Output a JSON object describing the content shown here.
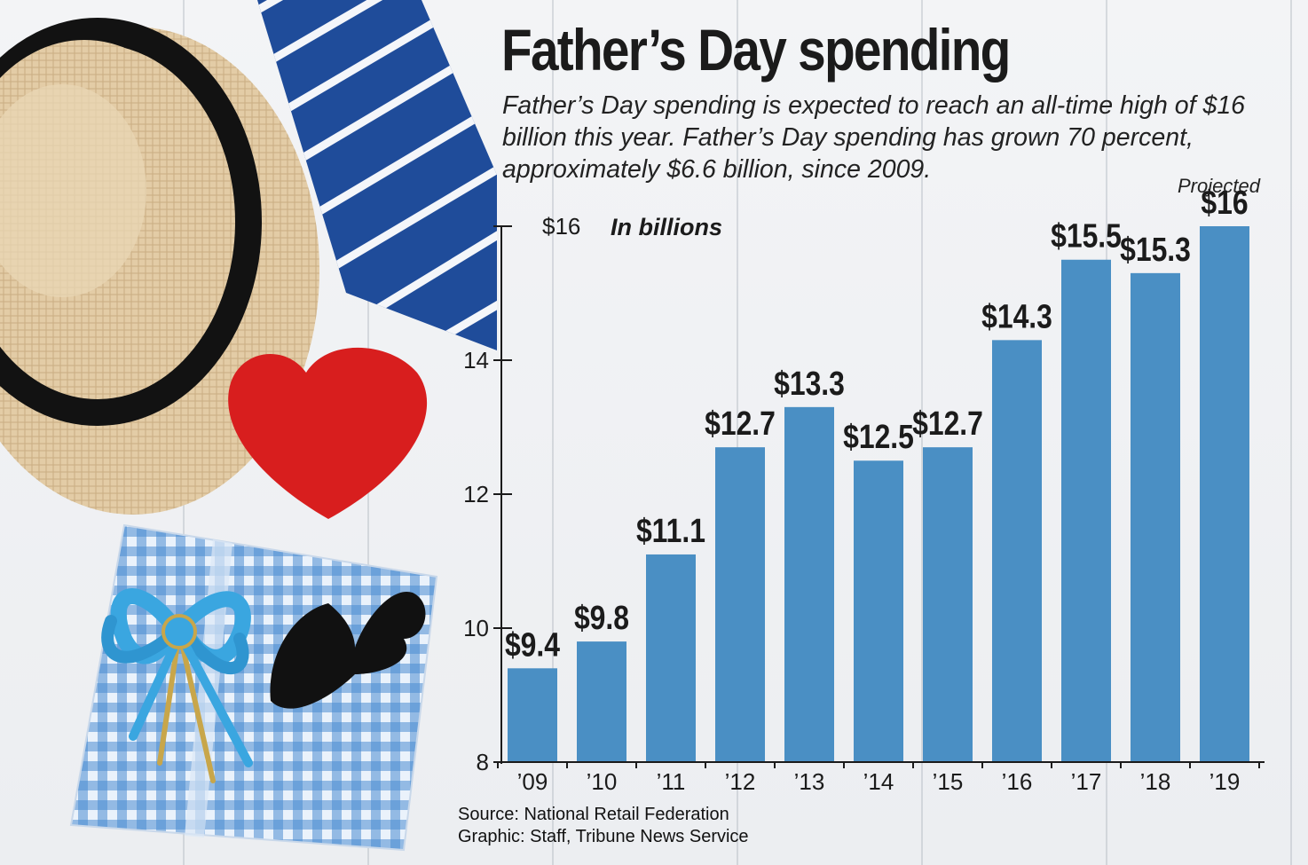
{
  "header": {
    "title": "Father’s Day spending",
    "subtitle": "Father’s Day spending is expected to reach an all-time high of $16 billion this year. Father’s Day spending has grown 70 percent, approximately $6.6 billion, since 2009."
  },
  "annotations": {
    "projected": "Projected",
    "unit": "In billions"
  },
  "footer": {
    "source": "Source: National Retail Federation",
    "credit": "Graphic: Staff, Tribune News Service"
  },
  "colors": {
    "bar": "#4a8fc4",
    "text": "#1b1b1b",
    "hat_straw": "#e2cba4",
    "hat_band": "#121212",
    "tie": "#1f4c9a",
    "heart": "#d81e1e",
    "gift": "#5c9ad6",
    "bow": "#3aa6e0"
  },
  "icons": [
    "straw-hat-icon",
    "tie-icon",
    "heart-icon",
    "gift-box-icon",
    "bow-icon",
    "mustache-icon"
  ],
  "chart_data": {
    "type": "bar",
    "categories": [
      "’09",
      "’10",
      "’11",
      "’12",
      "’13",
      "’14",
      "’15",
      "’16",
      "’17",
      "’18",
      "’19"
    ],
    "values": [
      9.4,
      9.8,
      11.1,
      12.7,
      13.3,
      12.5,
      12.7,
      14.3,
      15.5,
      15.3,
      16
    ],
    "value_labels": [
      "$9.4",
      "$9.8",
      "$11.1",
      "$12.7",
      "$13.3",
      "$12.5",
      "$12.7",
      "$14.3",
      "$15.5",
      "$15.3",
      "$16"
    ],
    "ylim": [
      8,
      16
    ],
    "yticks": [
      8,
      10,
      12,
      14,
      16
    ],
    "ytick_labels": [
      "8",
      "10",
      "12",
      "14",
      "$16"
    ],
    "ylabel": "In billions",
    "projected_category": "’19",
    "grid": false,
    "legend": "none"
  }
}
